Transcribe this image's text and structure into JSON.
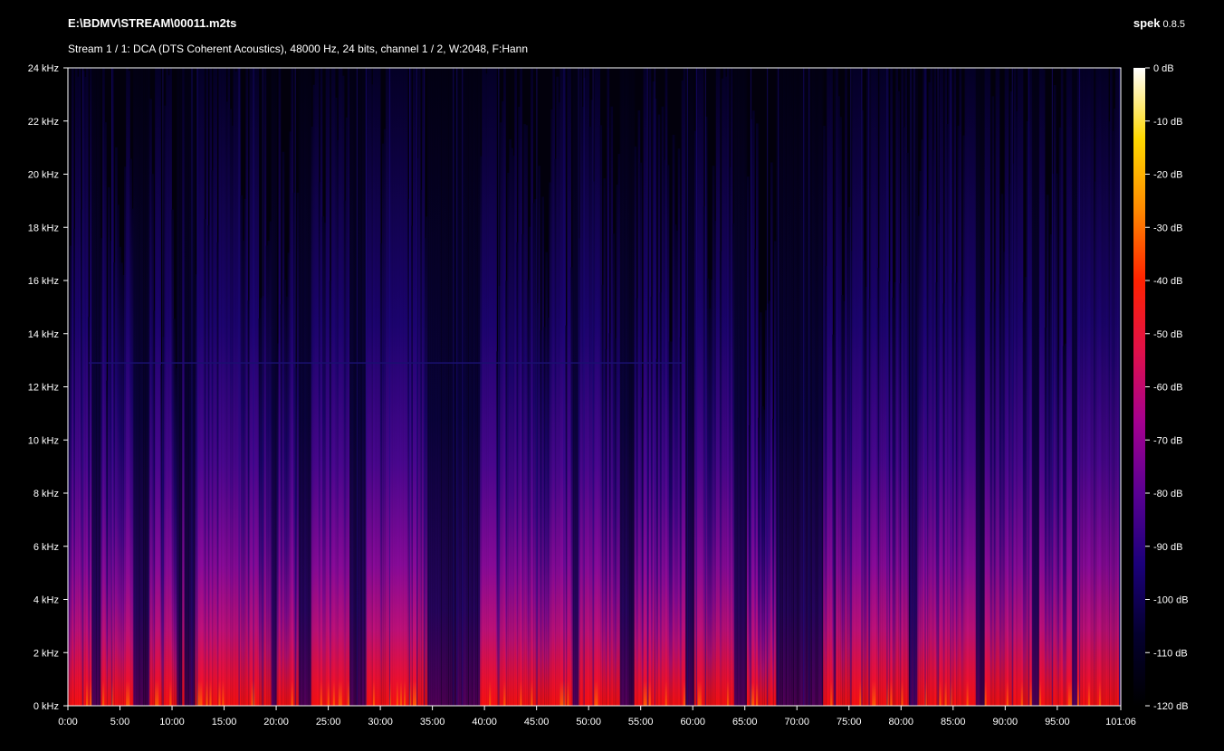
{
  "header": {
    "file_path": "E:\\BDMV\\STREAM\\00011.m2ts",
    "app_name": "spek",
    "app_version": "0.8.5",
    "stream_info": "Stream 1 / 1: DCA (DTS Coherent Acoustics), 48000 Hz, 24 bits, channel 1 / 2, W:2048, F:Hann"
  },
  "colors": {
    "background": "#000000",
    "axis": "#ffffff",
    "colormap": [
      "#000000",
      "#04002e",
      "#1b007a",
      "#5a0093",
      "#a40090",
      "#e0104a",
      "#ff2200",
      "#ff8a00",
      "#ffd800",
      "#ffffff"
    ]
  },
  "chart_data": {
    "type": "heatmap",
    "title": "",
    "xlabel": "",
    "ylabel": "",
    "x_ticks": [
      "0:00",
      "5:00",
      "10:00",
      "15:00",
      "20:00",
      "25:00",
      "30:00",
      "35:00",
      "40:00",
      "45:00",
      "50:00",
      "55:00",
      "60:00",
      "65:00",
      "70:00",
      "75:00",
      "80:00",
      "85:00",
      "90:00",
      "95:00",
      "101:06"
    ],
    "x_tick_minutes": [
      0,
      5,
      10,
      15,
      20,
      25,
      30,
      35,
      40,
      45,
      50,
      55,
      60,
      65,
      70,
      75,
      80,
      85,
      90,
      95,
      101.1
    ],
    "x_range_minutes": [
      0,
      101.1
    ],
    "y_ticks": [
      "0 kHz",
      "2 kHz",
      "4 kHz",
      "6 kHz",
      "8 kHz",
      "10 kHz",
      "12 kHz",
      "14 kHz",
      "16 kHz",
      "18 kHz",
      "20 kHz",
      "22 kHz",
      "24 kHz"
    ],
    "y_tick_khz": [
      0,
      2,
      4,
      6,
      8,
      10,
      12,
      14,
      16,
      18,
      20,
      22,
      24
    ],
    "y_range_khz": [
      0,
      24
    ],
    "colorbar_ticks": [
      "0 dB",
      "-10 dB",
      "-20 dB",
      "-30 dB",
      "-40 dB",
      "-50 dB",
      "-60 dB",
      "-70 dB",
      "-80 dB",
      "-90 dB",
      "-100 dB",
      "-110 dB",
      "-120 dB"
    ],
    "colorbar_db": [
      0,
      -10,
      -20,
      -30,
      -40,
      -50,
      -60,
      -70,
      -80,
      -90,
      -100,
      -110,
      -120
    ],
    "colorbar_range_db": [
      -120,
      0
    ],
    "loud_segments_minutes": [
      [
        0,
        2.2
      ],
      [
        3.2,
        6.2
      ],
      [
        7.8,
        10.5
      ],
      [
        10.9,
        11.1
      ],
      [
        12.2,
        19.6
      ],
      [
        20,
        22.2
      ],
      [
        23.4,
        27
      ],
      [
        28.5,
        34.5
      ],
      [
        39.5,
        48.5
      ],
      [
        49,
        53
      ],
      [
        54.3,
        59.3
      ],
      [
        60.2,
        64
      ],
      [
        65.2,
        68
      ],
      [
        72.5,
        73.5
      ],
      [
        73.8,
        80.7
      ],
      [
        81.5,
        87.2
      ],
      [
        88,
        92.5
      ],
      [
        93.2,
        96.4
      ],
      [
        97,
        101
      ]
    ],
    "loud_segment_peak_khz": [
      10,
      9,
      10,
      14,
      11,
      10,
      10,
      13,
      10,
      10,
      9,
      11,
      8,
      11,
      12,
      11,
      12,
      10,
      15
    ],
    "tonal_line_khz": 12.9,
    "tonal_line_minutes": [
      2,
      59.3
    ]
  }
}
